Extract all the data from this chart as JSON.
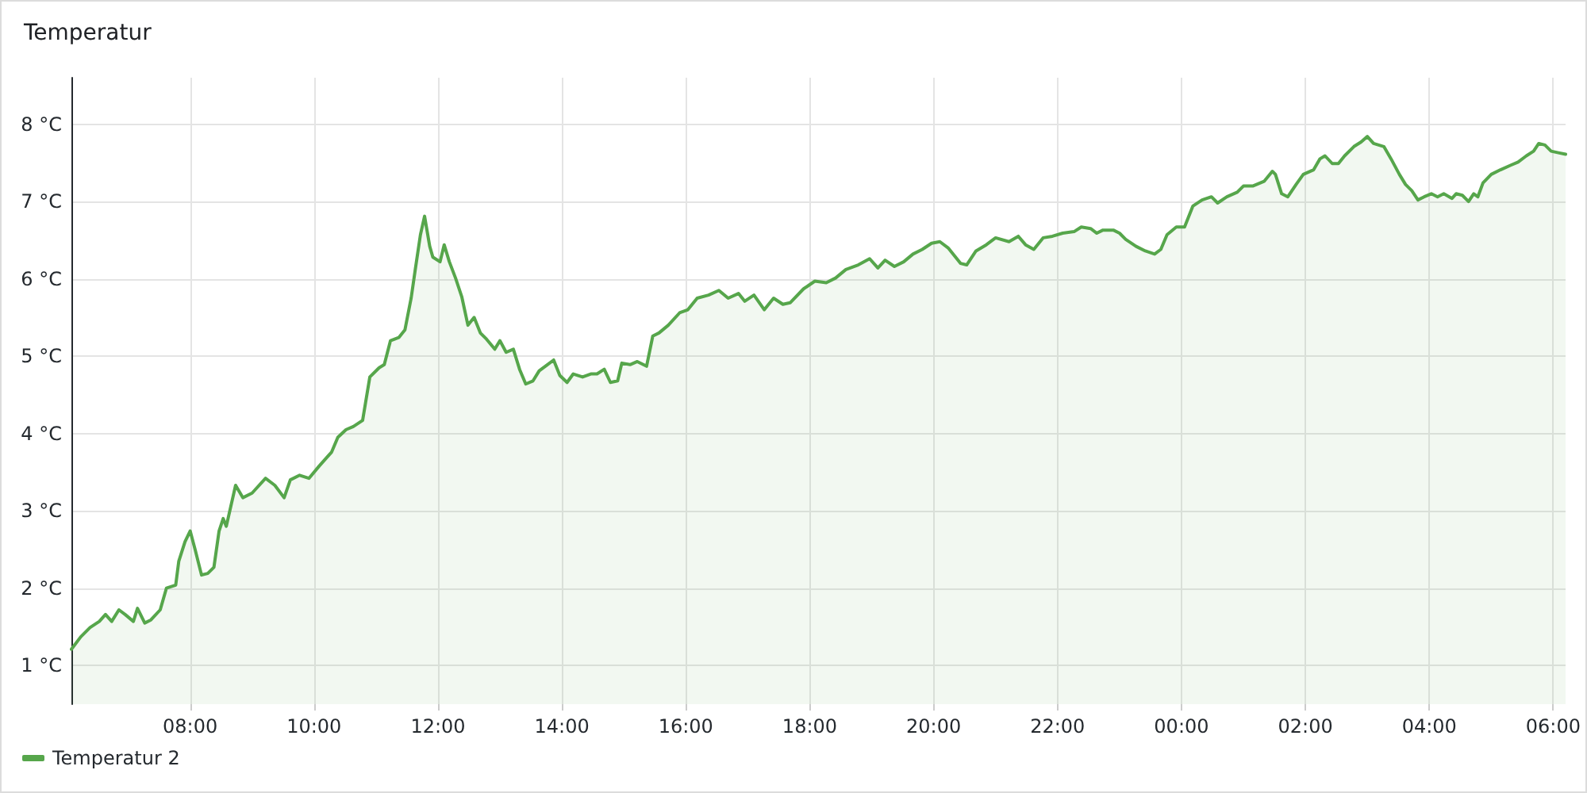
{
  "chart_data": {
    "type": "area",
    "title": "Temperatur",
    "xlim": [
      "2000-01-01T06:05",
      "2000-01-02T06:12"
    ],
    "ylim": [
      0.5,
      8.6
    ],
    "xticks": [
      {
        "value": "2000-01-01T08:00",
        "label": "08:00"
      },
      {
        "value": "2000-01-01T10:00",
        "label": "10:00"
      },
      {
        "value": "2000-01-01T12:00",
        "label": "12:00"
      },
      {
        "value": "2000-01-01T14:00",
        "label": "14:00"
      },
      {
        "value": "2000-01-01T16:00",
        "label": "16:00"
      },
      {
        "value": "2000-01-01T18:00",
        "label": "18:00"
      },
      {
        "value": "2000-01-01T20:00",
        "label": "20:00"
      },
      {
        "value": "2000-01-01T22:00",
        "label": "22:00"
      },
      {
        "value": "2000-01-02T00:00",
        "label": "00:00"
      },
      {
        "value": "2000-01-02T02:00",
        "label": "02:00"
      },
      {
        "value": "2000-01-02T04:00",
        "label": "04:00"
      },
      {
        "value": "2000-01-02T06:00",
        "label": "06:00"
      }
    ],
    "yticks": [
      {
        "value": 1,
        "label": "1 °C"
      },
      {
        "value": 2,
        "label": "2 °C"
      },
      {
        "value": 3,
        "label": "3 °C"
      },
      {
        "value": 4,
        "label": "4 °C"
      },
      {
        "value": 5,
        "label": "5 °C"
      },
      {
        "value": 6,
        "label": "6 °C"
      },
      {
        "value": 7,
        "label": "7 °C"
      },
      {
        "value": 8,
        "label": "8 °C"
      }
    ],
    "grid": true,
    "legend": "bottom left",
    "marker": "none",
    "line_style": "solid",
    "series": [
      {
        "name": "Temperatur 2",
        "color": "#56a64b",
        "x": [
          "2000-01-01T06:05",
          "2000-01-01T06:14",
          "2000-01-01T06:23",
          "2000-01-01T06:32",
          "2000-01-01T06:38",
          "2000-01-01T06:44",
          "2000-01-01T06:51",
          "2000-01-01T06:57",
          "2000-01-01T07:05",
          "2000-01-01T07:09",
          "2000-01-01T07:16",
          "2000-01-01T07:22",
          "2000-01-01T07:31",
          "2000-01-01T07:37",
          "2000-01-01T07:46",
          "2000-01-01T07:49",
          "2000-01-01T07:55",
          "2000-01-01T08:00",
          "2000-01-01T08:05",
          "2000-01-01T08:11",
          "2000-01-01T08:17",
          "2000-01-01T08:23",
          "2000-01-01T08:28",
          "2000-01-01T08:32",
          "2000-01-01T08:35",
          "2000-01-01T08:44",
          "2000-01-01T08:51",
          "2000-01-01T09:00",
          "2000-01-01T09:13",
          "2000-01-01T09:22",
          "2000-01-01T09:31",
          "2000-01-01T09:37",
          "2000-01-01T09:46",
          "2000-01-01T09:55",
          "2000-01-01T10:05",
          "2000-01-01T10:13",
          "2000-01-01T10:17",
          "2000-01-01T10:23",
          "2000-01-01T10:31",
          "2000-01-01T10:38",
          "2000-01-01T10:47",
          "2000-01-01T10:54",
          "2000-01-01T11:03",
          "2000-01-01T11:08",
          "2000-01-01T11:14",
          "2000-01-01T11:22",
          "2000-01-01T11:28",
          "2000-01-01T11:34",
          "2000-01-01T11:38",
          "2000-01-01T11:43",
          "2000-01-01T11:47",
          "2000-01-01T11:52",
          "2000-01-01T11:55",
          "2000-01-01T12:02",
          "2000-01-01T12:06",
          "2000-01-01T12:11",
          "2000-01-01T12:17",
          "2000-01-01T12:23",
          "2000-01-01T12:29",
          "2000-01-01T12:35",
          "2000-01-01T12:41",
          "2000-01-01T12:47",
          "2000-01-01T12:55",
          "2000-01-01T13:00",
          "2000-01-01T13:06",
          "2000-01-01T13:13",
          "2000-01-01T13:19",
          "2000-01-01T13:25",
          "2000-01-01T13:32",
          "2000-01-01T13:38",
          "2000-01-01T13:46",
          "2000-01-01T13:52",
          "2000-01-01T13:58",
          "2000-01-01T14:05",
          "2000-01-01T14:11",
          "2000-01-01T14:20",
          "2000-01-01T14:28",
          "2000-01-01T14:34",
          "2000-01-01T14:41",
          "2000-01-01T14:47",
          "2000-01-01T14:54",
          "2000-01-01T14:58",
          "2000-01-01T15:06",
          "2000-01-01T15:13",
          "2000-01-01T15:22",
          "2000-01-01T15:28",
          "2000-01-01T15:34",
          "2000-01-01T15:43",
          "2000-01-01T15:54",
          "2000-01-01T16:02",
          "2000-01-01T16:11",
          "2000-01-01T16:22",
          "2000-01-01T16:32",
          "2000-01-01T16:41",
          "2000-01-01T16:51",
          "2000-01-01T16:57",
          "2000-01-01T17:06",
          "2000-01-01T17:16",
          "2000-01-01T17:25",
          "2000-01-01T17:34",
          "2000-01-01T17:41",
          "2000-01-01T17:54",
          "2000-01-01T18:05",
          "2000-01-01T18:16",
          "2000-01-01T18:25",
          "2000-01-01T18:35",
          "2000-01-01T18:47",
          "2000-01-01T18:58",
          "2000-01-01T19:06",
          "2000-01-01T19:13",
          "2000-01-01T19:22",
          "2000-01-01T19:31",
          "2000-01-01T19:40",
          "2000-01-01T19:49",
          "2000-01-01T19:58",
          "2000-01-01T20:06",
          "2000-01-01T20:14",
          "2000-01-01T20:20",
          "2000-01-01T20:26",
          "2000-01-01T20:32",
          "2000-01-01T20:41",
          "2000-01-01T20:51",
          "2000-01-01T21:00",
          "2000-01-01T21:13",
          "2000-01-01T21:22",
          "2000-01-01T21:29",
          "2000-01-01T21:37",
          "2000-01-01T21:46",
          "2000-01-01T21:55",
          "2000-01-01T22:05",
          "2000-01-01T22:16",
          "2000-01-01T22:23",
          "2000-01-01T22:32",
          "2000-01-01T22:38",
          "2000-01-01T22:44",
          "2000-01-01T22:54",
          "2000-01-01T23:00",
          "2000-01-01T23:06",
          "2000-01-01T23:16",
          "2000-01-01T23:25",
          "2000-01-01T23:34",
          "2000-01-01T23:40",
          "2000-01-01T23:46",
          "2000-01-01T23:55",
          "2000-01-02T00:03",
          "2000-01-02T00:11",
          "2000-01-02T00:20",
          "2000-01-02T00:29",
          "2000-01-02T00:35",
          "2000-01-02T00:44",
          "2000-01-02T00:54",
          "2000-01-02T01:00",
          "2000-01-02T01:09",
          "2000-01-02T01:20",
          "2000-01-02T01:28",
          "2000-01-02T01:31",
          "2000-01-02T01:37",
          "2000-01-02T01:43",
          "2000-01-02T01:51",
          "2000-01-02T01:58",
          "2000-01-02T02:08",
          "2000-01-02T02:14",
          "2000-01-02T02:19",
          "2000-01-02T02:26",
          "2000-01-02T02:32",
          "2000-01-02T02:38",
          "2000-01-02T02:47",
          "2000-01-02T02:54",
          "2000-01-02T03:00",
          "2000-01-02T03:06",
          "2000-01-02T03:16",
          "2000-01-02T03:23",
          "2000-01-02T03:31",
          "2000-01-02T03:37",
          "2000-01-02T03:43",
          "2000-01-02T03:49",
          "2000-01-02T03:55",
          "2000-01-02T04:02",
          "2000-01-02T04:08",
          "2000-01-02T04:14",
          "2000-01-02T04:22",
          "2000-01-02T04:26",
          "2000-01-02T04:32",
          "2000-01-02T04:38",
          "2000-01-02T04:43",
          "2000-01-02T04:47",
          "2000-01-02T04:52",
          "2000-01-02T05:00",
          "2000-01-02T05:09",
          "2000-01-02T05:19",
          "2000-01-02T05:26",
          "2000-01-02T05:34",
          "2000-01-02T05:41",
          "2000-01-02T05:46",
          "2000-01-02T05:52",
          "2000-01-02T05:58",
          "2000-01-02T06:05",
          "2000-01-02T06:12"
        ],
        "values": [
          1.21,
          1.37,
          1.49,
          1.57,
          1.66,
          1.57,
          1.72,
          1.66,
          1.57,
          1.74,
          1.55,
          1.59,
          1.72,
          2.0,
          2.04,
          2.35,
          2.6,
          2.74,
          2.49,
          2.17,
          2.19,
          2.27,
          2.74,
          2.9,
          2.8,
          3.33,
          3.17,
          3.23,
          3.42,
          3.33,
          3.17,
          3.4,
          3.46,
          3.42,
          3.58,
          3.7,
          3.76,
          3.95,
          4.05,
          4.09,
          4.17,
          4.73,
          4.85,
          4.89,
          5.2,
          5.24,
          5.34,
          5.75,
          6.12,
          6.57,
          6.81,
          6.42,
          6.28,
          6.22,
          6.44,
          6.22,
          6.01,
          5.77,
          5.4,
          5.5,
          5.3,
          5.22,
          5.09,
          5.2,
          5.05,
          5.09,
          4.83,
          4.64,
          4.68,
          4.81,
          4.89,
          4.95,
          4.75,
          4.66,
          4.77,
          4.73,
          4.77,
          4.77,
          4.83,
          4.66,
          4.68,
          4.91,
          4.89,
          4.93,
          4.87,
          5.26,
          5.3,
          5.4,
          5.56,
          5.6,
          5.75,
          5.79,
          5.85,
          5.75,
          5.81,
          5.71,
          5.79,
          5.6,
          5.75,
          5.67,
          5.69,
          5.87,
          5.97,
          5.95,
          6.01,
          6.12,
          6.18,
          6.26,
          6.14,
          6.24,
          6.16,
          6.22,
          6.32,
          6.38,
          6.46,
          6.48,
          6.4,
          6.3,
          6.2,
          6.18,
          6.36,
          6.44,
          6.53,
          6.48,
          6.55,
          6.44,
          6.38,
          6.53,
          6.55,
          6.59,
          6.61,
          6.67,
          6.65,
          6.59,
          6.63,
          6.63,
          6.59,
          6.51,
          6.42,
          6.36,
          6.32,
          6.38,
          6.57,
          6.67,
          6.67,
          6.94,
          7.02,
          7.06,
          6.98,
          7.06,
          7.12,
          7.2,
          7.2,
          7.26,
          7.39,
          7.35,
          7.1,
          7.06,
          7.22,
          7.35,
          7.41,
          7.55,
          7.59,
          7.49,
          7.49,
          7.59,
          7.71,
          7.77,
          7.84,
          7.75,
          7.71,
          7.55,
          7.35,
          7.22,
          7.14,
          7.02,
          7.06,
          7.1,
          7.06,
          7.1,
          7.04,
          7.1,
          7.08,
          7.0,
          7.1,
          7.06,
          7.24,
          7.35,
          7.41,
          7.47,
          7.51,
          7.59,
          7.65,
          7.75,
          7.73,
          7.65,
          7.63,
          7.61
        ]
      }
    ]
  }
}
